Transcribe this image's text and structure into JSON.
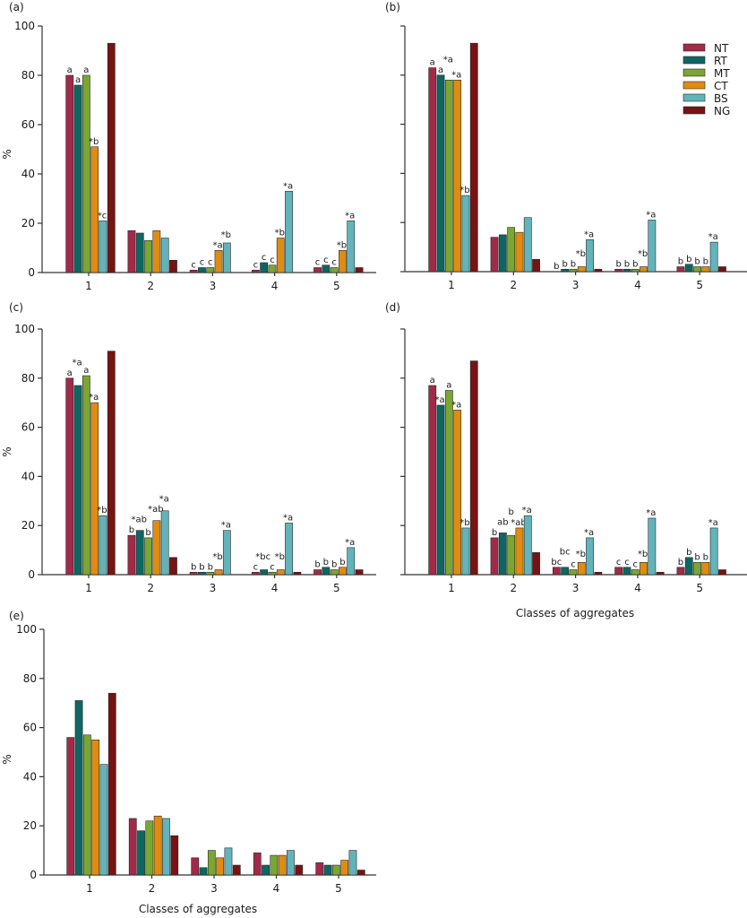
{
  "figure": {
    "legend": {
      "entries": [
        {
          "key": "NT",
          "label": "NT",
          "color": "#A12A48"
        },
        {
          "key": "RT",
          "label": "RT",
          "color": "#0E6662"
        },
        {
          "key": "MT",
          "label": "MT",
          "color": "#7AA632"
        },
        {
          "key": "CT",
          "label": "CT",
          "color": "#DF8C10"
        },
        {
          "key": "BS",
          "label": "BS",
          "color": "#62B4BA"
        },
        {
          "key": "NG",
          "label": "NG",
          "color": "#761313"
        }
      ],
      "placement": "top-right of panel (b)"
    }
  },
  "chart_data": [
    {
      "type": "bar",
      "panel": "(a)",
      "title": "(a)",
      "xlabel": "",
      "ylabel": "%",
      "ylim": [
        0,
        100
      ],
      "yticks": [
        "0",
        "20",
        "40",
        "60",
        "80",
        "100"
      ],
      "show_ytick_labels": true,
      "categories": [
        "1",
        "2",
        "3",
        "4",
        "5"
      ],
      "series": [
        {
          "name": "NT",
          "values": [
            80,
            17,
            1,
            1,
            2
          ],
          "labels": [
            "a",
            "",
            "c",
            "c",
            "c"
          ]
        },
        {
          "name": "RT",
          "values": [
            76,
            16,
            2,
            4,
            3
          ],
          "labels": [
            "a",
            "",
            "c",
            "c",
            "c"
          ]
        },
        {
          "name": "MT",
          "values": [
            80,
            13,
            2,
            3,
            2
          ],
          "labels": [
            "a",
            "",
            "c",
            "c",
            "c"
          ]
        },
        {
          "name": "CT",
          "values": [
            51,
            17,
            9,
            14,
            9
          ],
          "labels": [
            "*b",
            "",
            "*a",
            "*b",
            "*b"
          ]
        },
        {
          "name": "BS",
          "values": [
            21,
            14,
            12,
            33,
            21
          ],
          "labels": [
            "*c",
            "",
            "*b",
            "*a",
            "*a"
          ]
        },
        {
          "name": "NG",
          "values": [
            93,
            5,
            0,
            0,
            2
          ],
          "labels": [
            "",
            "",
            "",
            "",
            ""
          ]
        }
      ]
    },
    {
      "type": "bar",
      "panel": "(b)",
      "title": "(b)",
      "xlabel": "",
      "ylabel": "",
      "ylim": [
        0,
        100
      ],
      "yticks": [
        "",
        "",
        "",
        "",
        "",
        ""
      ],
      "show_ytick_labels": false,
      "categories": [
        "1",
        "2",
        "3",
        "4",
        "5"
      ],
      "series": [
        {
          "name": "NT",
          "values": [
            83,
            14,
            0,
            1,
            2
          ],
          "labels": [
            "a",
            "",
            "b",
            "b",
            "b"
          ]
        },
        {
          "name": "RT",
          "values": [
            80,
            15,
            1,
            1,
            3
          ],
          "labels": [
            "a",
            "",
            "b",
            "b",
            "b"
          ]
        },
        {
          "name": "MT",
          "values": [
            78,
            18,
            1,
            1,
            2
          ],
          "labels": [
            "*a",
            "",
            "b",
            "b",
            "b"
          ]
        },
        {
          "name": "CT",
          "values": [
            78,
            16,
            2,
            2,
            2
          ],
          "labels": [
            "*a",
            "",
            "*b",
            "*b",
            "b"
          ]
        },
        {
          "name": "BS",
          "values": [
            31,
            22,
            13,
            21,
            12
          ],
          "labels": [
            "*b",
            "",
            "*a",
            "*a",
            "*a"
          ]
        },
        {
          "name": "NG",
          "values": [
            93,
            5,
            1,
            0,
            2
          ],
          "labels": [
            "",
            "",
            "",
            "",
            ""
          ]
        }
      ]
    },
    {
      "type": "bar",
      "panel": "(c)",
      "title": "(c)",
      "xlabel": "",
      "ylabel": "%",
      "ylim": [
        0,
        100
      ],
      "yticks": [
        "0",
        "20",
        "40",
        "60",
        "80",
        "100"
      ],
      "show_ytick_labels": true,
      "categories": [
        "1",
        "2",
        "3",
        "4",
        "5"
      ],
      "series": [
        {
          "name": "NT",
          "values": [
            80,
            16,
            1,
            1,
            2
          ],
          "labels": [
            "a",
            "b",
            "b",
            "c",
            "b"
          ]
        },
        {
          "name": "RT",
          "values": [
            77,
            18,
            1,
            2,
            3
          ],
          "labels": [
            "*a",
            "*ab",
            "b",
            "*bc",
            "b"
          ]
        },
        {
          "name": "MT",
          "values": [
            81,
            15,
            1,
            1,
            2
          ],
          "labels": [
            "a",
            "b",
            "b",
            "c",
            "b"
          ]
        },
        {
          "name": "CT",
          "values": [
            70,
            22,
            2,
            2,
            3
          ],
          "labels": [
            "*a",
            "*ab",
            "*b",
            "*b",
            "b"
          ]
        },
        {
          "name": "BS",
          "values": [
            24,
            26,
            18,
            21,
            11
          ],
          "labels": [
            "*b",
            "*a",
            "*a",
            "*a",
            "*a"
          ]
        },
        {
          "name": "NG",
          "values": [
            91,
            7,
            0,
            1,
            2
          ],
          "labels": [
            "",
            "",
            "",
            "",
            ""
          ]
        }
      ]
    },
    {
      "type": "bar",
      "panel": "(d)",
      "title": "(d)",
      "xlabel": "Classes of aggregates",
      "ylabel": "",
      "ylim": [
        0,
        100
      ],
      "yticks": [
        "",
        "",
        "",
        "",
        "",
        ""
      ],
      "show_ytick_labels": false,
      "categories": [
        "1",
        "2",
        "3",
        "4",
        "5"
      ],
      "series": [
        {
          "name": "NT",
          "values": [
            77,
            15,
            3,
            3,
            3
          ],
          "labels": [
            "a",
            "b",
            "bc",
            "c",
            "b"
          ]
        },
        {
          "name": "RT",
          "values": [
            69,
            17,
            3,
            3,
            7
          ],
          "labels": [
            "*a",
            "ab",
            "bc",
            "c",
            "b"
          ]
        },
        {
          "name": "MT",
          "values": [
            75,
            16,
            2,
            2,
            5
          ],
          "labels": [
            "a",
            "b",
            "c",
            "c",
            "b"
          ]
        },
        {
          "name": "CT",
          "values": [
            67,
            19,
            5,
            5,
            5
          ],
          "labels": [
            "*a",
            "*ab",
            "*b",
            "*b",
            "b"
          ]
        },
        {
          "name": "BS",
          "values": [
            19,
            24,
            15,
            23,
            19
          ],
          "labels": [
            "*b",
            "*a",
            "*a",
            "*a",
            "*a"
          ]
        },
        {
          "name": "NG",
          "values": [
            87,
            9,
            1,
            1,
            2
          ],
          "labels": [
            "",
            "",
            "",
            "",
            ""
          ]
        }
      ]
    },
    {
      "type": "bar",
      "panel": "(e)",
      "title": "(e)",
      "xlabel": "Classes of aggregates",
      "ylabel": "%",
      "ylim": [
        0,
        100
      ],
      "yticks": [
        "0",
        "20",
        "40",
        "60",
        "80",
        "100"
      ],
      "show_ytick_labels": true,
      "categories": [
        "1",
        "2",
        "3",
        "4",
        "5"
      ],
      "series": [
        {
          "name": "NT",
          "values": [
            56,
            23,
            7,
            9,
            5
          ],
          "labels": [
            "",
            "",
            "",
            "",
            ""
          ]
        },
        {
          "name": "RT",
          "values": [
            71,
            18,
            3,
            4,
            4
          ],
          "labels": [
            "",
            "",
            "",
            "",
            ""
          ]
        },
        {
          "name": "MT",
          "values": [
            57,
            22,
            10,
            8,
            4
          ],
          "labels": [
            "",
            "",
            "",
            "",
            ""
          ]
        },
        {
          "name": "CT",
          "values": [
            55,
            24,
            7,
            8,
            6
          ],
          "labels": [
            "",
            "",
            "",
            "",
            ""
          ]
        },
        {
          "name": "BS",
          "values": [
            45,
            23,
            11,
            10,
            10
          ],
          "labels": [
            "",
            "",
            "",
            "",
            ""
          ]
        },
        {
          "name": "NG",
          "values": [
            74,
            16,
            4,
            4,
            2
          ],
          "labels": [
            "",
            "",
            "",
            "",
            ""
          ]
        }
      ]
    }
  ]
}
